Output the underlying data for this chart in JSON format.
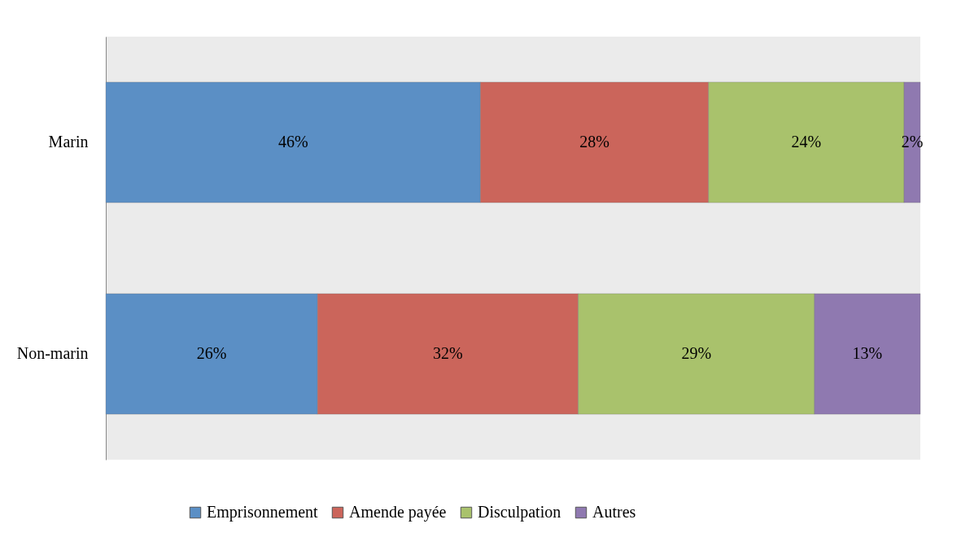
{
  "chart_data": {
    "type": "bar",
    "orientation": "horizontal",
    "stacked": true,
    "categories": [
      "Marin",
      "Non-marin"
    ],
    "xlim": [
      0,
      100
    ],
    "tick_labels": "y",
    "legend": "bottom",
    "series": [
      {
        "name": "Emprisonnement",
        "color": "#5b8fc5",
        "values": [
          46,
          26
        ],
        "value_labels": [
          "46%",
          "26%"
        ]
      },
      {
        "name": "Amende payée",
        "color": "#cb655b",
        "values": [
          28,
          32
        ],
        "value_labels": [
          "28%",
          "32%"
        ]
      },
      {
        "name": "Disculpation",
        "color": "#a9c26c",
        "values": [
          24,
          29
        ],
        "value_labels": [
          "24%",
          "29%"
        ]
      },
      {
        "name": "Autres",
        "color": "#8f79b0",
        "values": [
          2,
          13
        ],
        "value_labels": [
          "2%",
          "13%"
        ]
      }
    ]
  }
}
